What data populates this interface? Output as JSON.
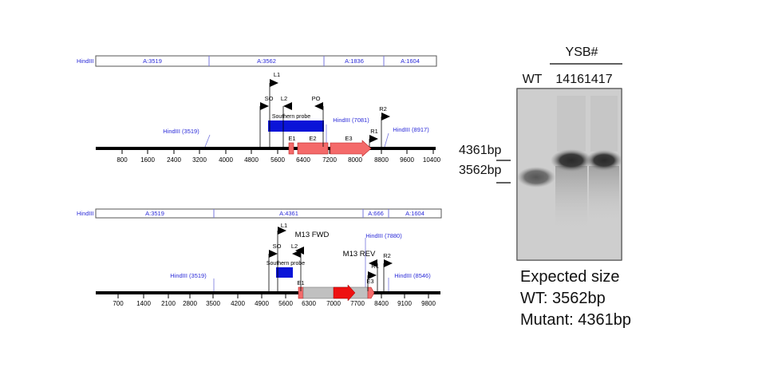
{
  "maps": [
    {
      "fragments": [
        {
          "site": "HindIII",
          "label": "A:3519"
        },
        {
          "label": "A:3562"
        },
        {
          "label": "A:1836"
        },
        {
          "label": "A:1604"
        }
      ],
      "sites": [
        {
          "label": "HindIII (3519)"
        },
        {
          "label": "HindIII (7081)"
        },
        {
          "label": "HindIII (8917)"
        }
      ],
      "primers": [
        {
          "label": "L1"
        },
        {
          "label": "SO"
        },
        {
          "label": "L2"
        },
        {
          "label": "PO"
        },
        {
          "label": "R2"
        },
        {
          "label": "R1"
        }
      ],
      "probe": "Southern probe",
      "exons": [
        "E1",
        "E2",
        "E3"
      ],
      "ticks": [
        "800",
        "1600",
        "2400",
        "3200",
        "4000",
        "4800",
        "5600",
        "6400",
        "7200",
        "8000",
        "8800",
        "9600",
        "10400"
      ]
    },
    {
      "fragments": [
        {
          "site": "HindIII",
          "label": "A:3519"
        },
        {
          "label": "A:4361"
        },
        {
          "label": "A:666"
        },
        {
          "label": "A:1604"
        }
      ],
      "sites": [
        {
          "label": "HindIII (3519)"
        },
        {
          "label": "HindIII (7880)"
        },
        {
          "label": "HindIII (8546)"
        }
      ],
      "primers": [
        {
          "label": "L1"
        },
        {
          "label": "SO"
        },
        {
          "label": "M13 FWD"
        },
        {
          "label": "L2"
        },
        {
          "label": "M13 REV"
        },
        {
          "label": "R1"
        },
        {
          "label": "R2"
        }
      ],
      "probe": "Southern probe",
      "exons": [
        "E1",
        "E3"
      ],
      "ticks": [
        "700",
        "1400",
        "2100",
        "2800",
        "3500",
        "4200",
        "4900",
        "5600",
        "6300",
        "7000",
        "7700",
        "8400",
        "9100",
        "9800"
      ]
    }
  ],
  "blot": {
    "group_label": "YSB#",
    "lanes": [
      "WT",
      "14161417"
    ],
    "markers": [
      "4361bp",
      "3562bp"
    ]
  },
  "expected": {
    "title": "Expected size",
    "wt": "WT: 3562bp",
    "mutant": "Mutant: 4361bp"
  },
  "colors": {
    "exon": "#f46a6a",
    "probe": "#0a14d8",
    "site_text": "#2a2ad8",
    "cassette": "#c0c0c0",
    "marker_gene": "#ee1111"
  }
}
